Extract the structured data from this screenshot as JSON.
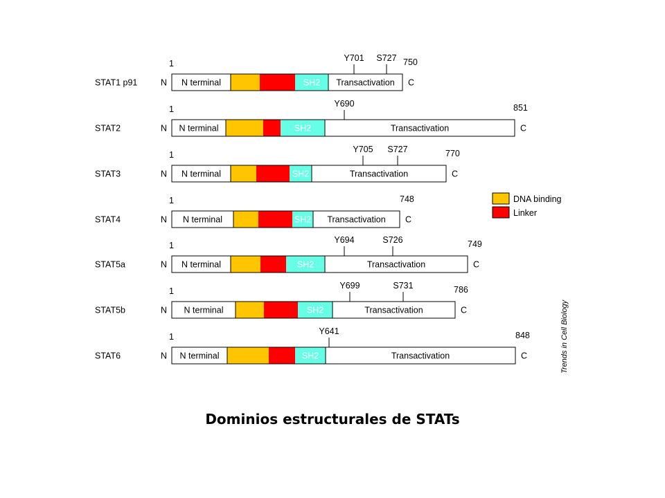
{
  "colors": {
    "dna_binding": "#FFC600",
    "linker": "#FF0000",
    "sh2": "#66FFE6",
    "other": "#FFFFFF",
    "outline": "#000000"
  },
  "labels": {
    "n_end": "N",
    "c_end": "C",
    "start_residue": "1",
    "n_terminal": "N terminal",
    "sh2": "SH2",
    "transactivation": "Transactivation"
  },
  "legend": {
    "items": [
      {
        "label": "DNA binding",
        "color": "#FFC600"
      },
      {
        "label": "Linker",
        "color": "#FF0000"
      }
    ]
  },
  "credit": "Trends in Cell Biology",
  "caption": "Dominios estructurales de STATs",
  "proteins": [
    {
      "name": "STAT1 p91",
      "length": "750",
      "sites": [
        "Y701",
        "S727"
      ]
    },
    {
      "name": "STAT2",
      "length": "851",
      "sites": [
        "Y690"
      ]
    },
    {
      "name": "STAT3",
      "length": "770",
      "sites": [
        "Y705",
        "S727"
      ]
    },
    {
      "name": "STAT4",
      "length": "748",
      "sites": []
    },
    {
      "name": "STAT5a",
      "length": "749",
      "sites": [
        "Y694",
        "S726"
      ]
    },
    {
      "name": "STAT5b",
      "length": "786",
      "sites": [
        "Y699",
        "S731"
      ]
    },
    {
      "name": "STAT6",
      "length": "848",
      "sites": [
        "Y641"
      ]
    }
  ]
}
